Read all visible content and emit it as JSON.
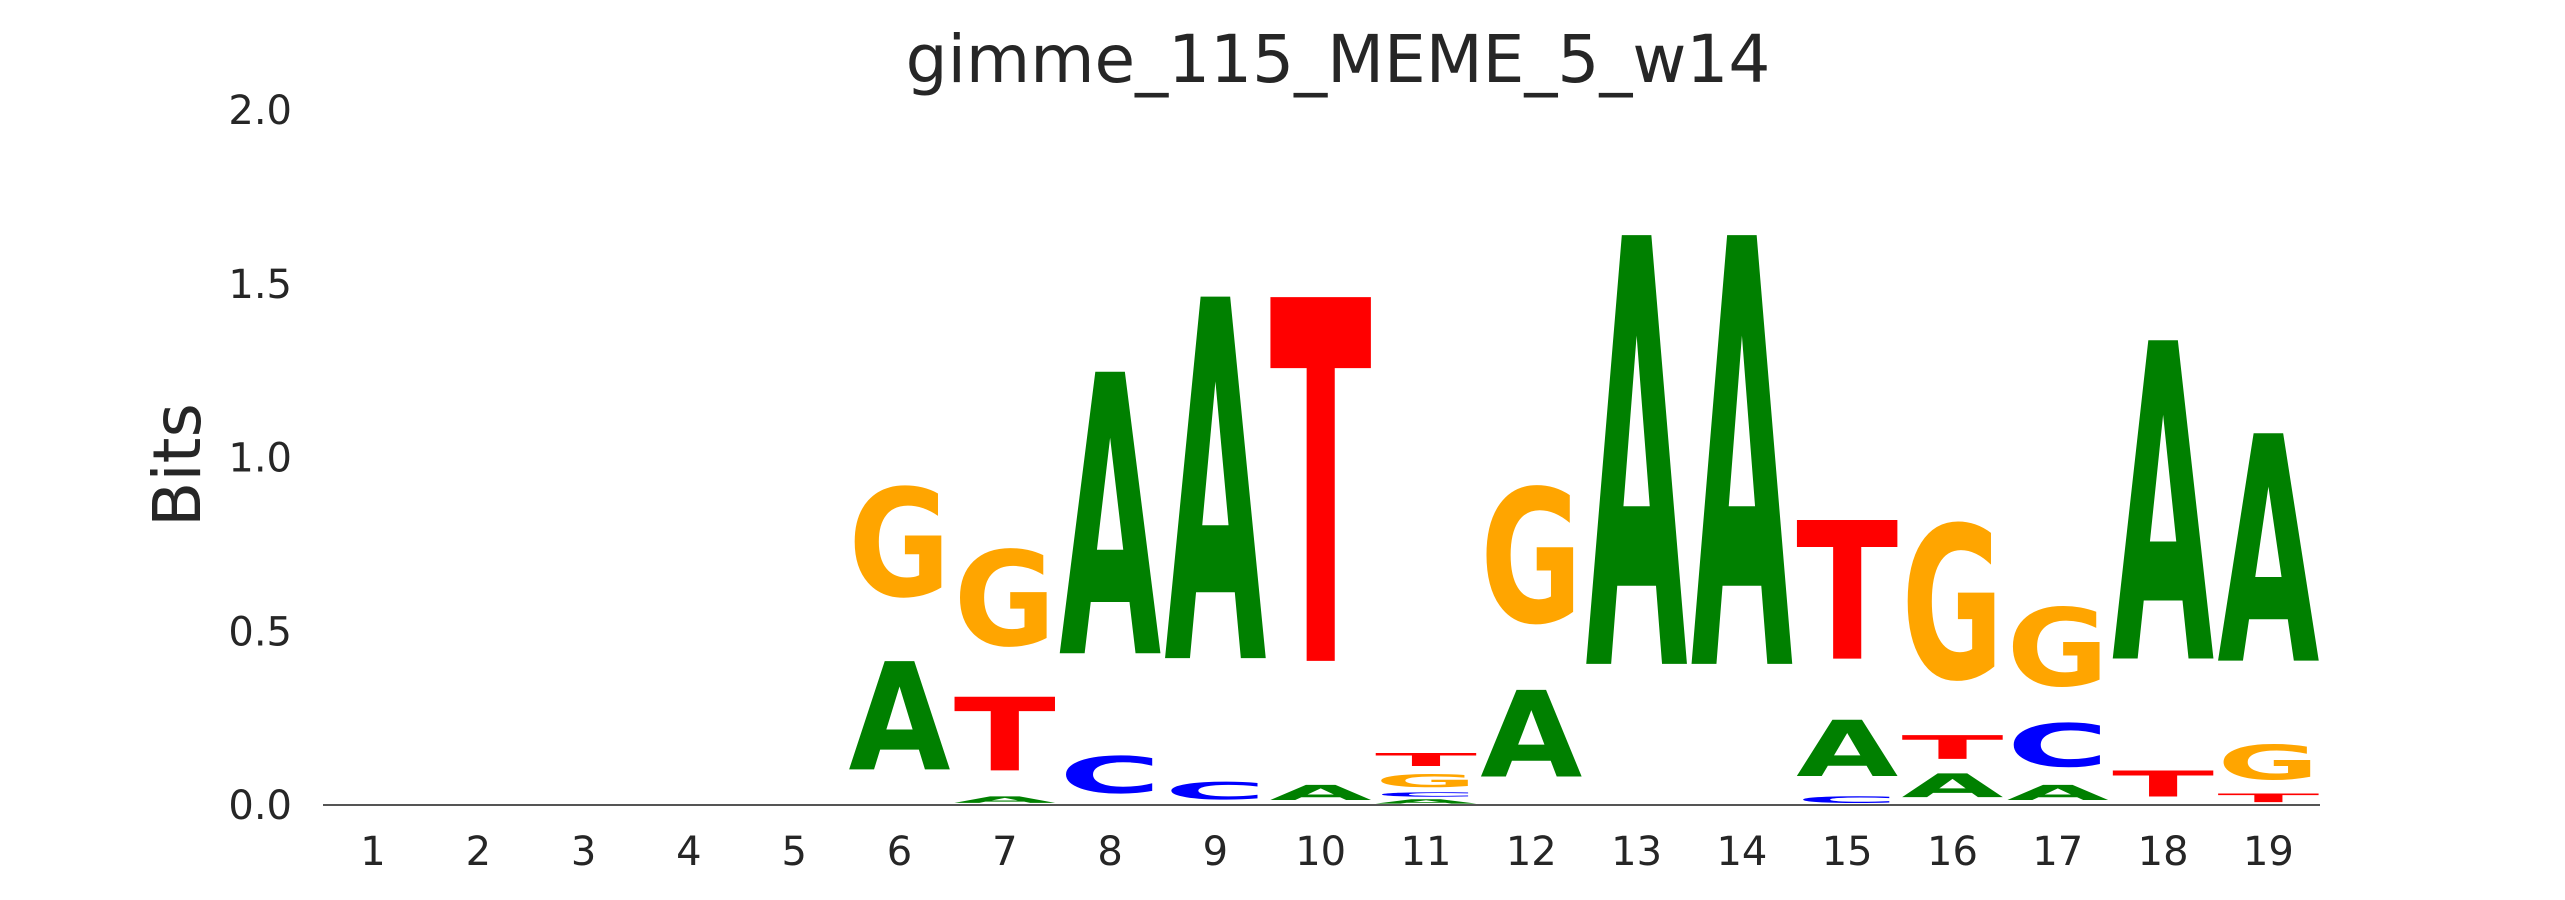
{
  "chart_data": {
    "type": "sequence-logo",
    "title": "gimme_115_MEME_5_w14",
    "xlabel": "",
    "ylabel": "Bits",
    "ylim": [
      0,
      2.0
    ],
    "y_ticks": [
      "0.0",
      "0.5",
      "1.0",
      "1.5",
      "2.0"
    ],
    "grid": false,
    "colors": {
      "A": "#008000",
      "C": "#0000ff",
      "G": "#ffa500",
      "T": "#ff0000"
    },
    "positions": [
      {
        "x": "1",
        "letters": []
      },
      {
        "x": "2",
        "letters": []
      },
      {
        "x": "3",
        "letters": []
      },
      {
        "x": "4",
        "letters": []
      },
      {
        "x": "5",
        "letters": []
      },
      {
        "x": "6",
        "letters": [
          {
            "base": "A",
            "bits": 0.5
          },
          {
            "base": "G",
            "bits": 0.5
          }
        ]
      },
      {
        "x": "7",
        "letters": [
          {
            "base": "A",
            "bits": 0.03
          },
          {
            "base": "T",
            "bits": 0.34
          },
          {
            "base": "G",
            "bits": 0.44
          }
        ]
      },
      {
        "x": "8",
        "letters": [
          {
            "base": "C",
            "bits": 0.17
          },
          {
            "base": "A",
            "bits": 1.3
          }
        ]
      },
      {
        "x": "9",
        "letters": [
          {
            "base": "C",
            "bits": 0.08
          },
          {
            "base": "A",
            "bits": 1.67
          }
        ]
      },
      {
        "x": "10",
        "letters": [
          {
            "base": "A",
            "bits": 0.07
          },
          {
            "base": "T",
            "bits": 1.68
          }
        ]
      },
      {
        "x": "11",
        "letters": [
          {
            "base": "A",
            "bits": 0.02
          },
          {
            "base": "C",
            "bits": 0.02
          },
          {
            "base": "G",
            "bits": 0.06
          },
          {
            "base": "T",
            "bits": 0.06
          }
        ]
      },
      {
        "x": "12",
        "letters": [
          {
            "base": "A",
            "bits": 0.4
          },
          {
            "base": "G",
            "bits": 0.62
          }
        ]
      },
      {
        "x": "13",
        "letters": [
          {
            "base": "A",
            "bits": 1.98
          }
        ]
      },
      {
        "x": "14",
        "letters": [
          {
            "base": "A",
            "bits": 1.98
          }
        ]
      },
      {
        "x": "15",
        "letters": [
          {
            "base": "C",
            "bits": 0.03
          },
          {
            "base": "A",
            "bits": 0.26
          },
          {
            "base": "T",
            "bits": 0.64
          }
        ]
      },
      {
        "x": "16",
        "letters": [
          {
            "base": "A",
            "bits": 0.11
          },
          {
            "base": "T",
            "bits": 0.11
          },
          {
            "base": "G",
            "bits": 0.71
          }
        ]
      },
      {
        "x": "17",
        "letters": [
          {
            "base": "A",
            "bits": 0.07
          },
          {
            "base": "C",
            "bits": 0.2
          },
          {
            "base": "G",
            "bits": 0.36
          }
        ]
      },
      {
        "x": "18",
        "letters": [
          {
            "base": "T",
            "bits": 0.12
          },
          {
            "base": "A",
            "bits": 1.47
          }
        ]
      },
      {
        "x": "19",
        "letters": [
          {
            "base": "T",
            "bits": 0.04
          },
          {
            "base": "G",
            "bits": 0.16
          },
          {
            "base": "A",
            "bits": 1.05
          }
        ]
      }
    ]
  }
}
